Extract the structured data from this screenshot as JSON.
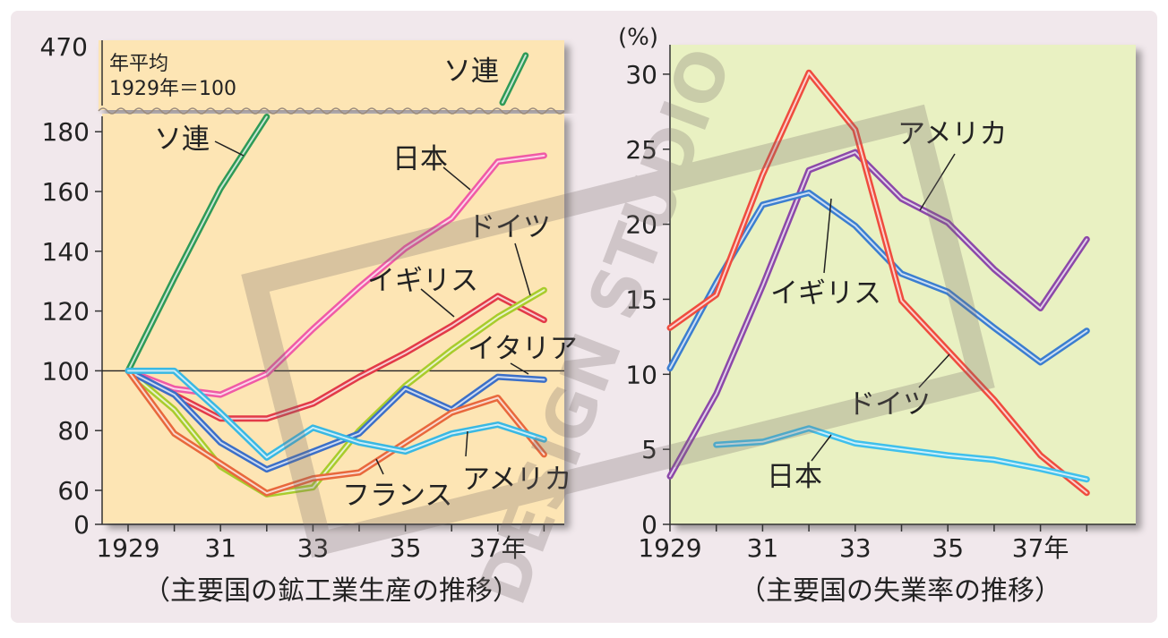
{
  "colors": {
    "frame_bg": "#f1e8ec",
    "left_plot_bg": "#fde5b4",
    "right_plot_bg": "#e9f1c2",
    "watermark": "#7a6f6c",
    "ussr": "#2e9a57",
    "japan_left": "#f05aa6",
    "uk_left": "#e23a48",
    "germany_left": "#a8cc2c",
    "italy": "#3b6fc8",
    "france": "#e8683c",
    "usa_left": "#39b8e3",
    "us_right": "#8c48a9",
    "uk_right": "#3b7ed0",
    "germany_right": "#ef4c3e",
    "japan_right": "#3fc0ec"
  },
  "watermark_text": "DESIGN STUDIO",
  "chart_data": [
    {
      "type": "line",
      "id": "production",
      "title": "（主要国の鉱工業生産の推移）",
      "note_line1": "年平均",
      "note_line2": "1929年＝100",
      "xlabel": "",
      "ylabel": "",
      "x": [
        1929,
        1930,
        1931,
        1932,
        1933,
        1934,
        1935,
        1936,
        1937,
        1938
      ],
      "x_tick_values": [
        1929,
        1931,
        1933,
        1935,
        1937
      ],
      "x_tick_labels": [
        "1929",
        "31",
        "33",
        "35",
        "37年"
      ],
      "y_tick_values": [
        0,
        60,
        80,
        100,
        120,
        140,
        160,
        180
      ],
      "y_tick_labels": [
        "0",
        "60",
        "80",
        "100",
        "120",
        "140",
        "160",
        "180"
      ],
      "y_break_label": "470",
      "ylim": [
        0,
        190
      ],
      "baseline": 100,
      "series": [
        {
          "name": "ソ連",
          "label": "ソ連",
          "color_key": "ussr",
          "points": [
            [
              1929,
              100
            ],
            [
              1930,
              131
            ],
            [
              1931,
              161
            ],
            [
              1932,
              185
            ]
          ]
        },
        {
          "name": "ソ連 (470)",
          "label": "ソ連",
          "color_key": "ussr",
          "above_break": true,
          "points": [
            [
              1937.1,
              1
            ],
            [
              1937.6,
              17
            ]
          ]
        },
        {
          "name": "日本",
          "label": "日本",
          "color_key": "japan_left",
          "points": [
            [
              1929,
              100
            ],
            [
              1930,
              94
            ],
            [
              1931,
              92
            ],
            [
              1932,
              99
            ],
            [
              1933,
              114
            ],
            [
              1934,
              128
            ],
            [
              1935,
              141
            ],
            [
              1936,
              151
            ],
            [
              1937,
              170
            ],
            [
              1938,
              172
            ]
          ]
        },
        {
          "name": "イギリス",
          "label": "イギリス",
          "color_key": "uk_left",
          "points": [
            [
              1929,
              100
            ],
            [
              1930,
              92
            ],
            [
              1931,
              84
            ],
            [
              1932,
              84
            ],
            [
              1933,
              89
            ],
            [
              1934,
              98
            ],
            [
              1935,
              106
            ],
            [
              1936,
              115
            ],
            [
              1937,
              125
            ],
            [
              1938,
              117
            ]
          ]
        },
        {
          "name": "ドイツ",
          "label": "ドイツ",
          "color_key": "germany_left",
          "points": [
            [
              1929,
              100
            ],
            [
              1930,
              87
            ],
            [
              1931,
              68
            ],
            [
              1932,
              53
            ],
            [
              1933,
              61
            ],
            [
              1934,
              80
            ],
            [
              1935,
              95
            ],
            [
              1936,
              107
            ],
            [
              1937,
              118
            ],
            [
              1938,
              127
            ]
          ]
        },
        {
          "name": "イタリア",
          "label": "イタリア",
          "color_key": "italy",
          "points": [
            [
              1929,
              100
            ],
            [
              1930,
              92
            ],
            [
              1931,
              76
            ],
            [
              1932,
              67
            ],
            [
              1933,
              73
            ],
            [
              1934,
              79
            ],
            [
              1935,
              94
            ],
            [
              1936,
              87
            ],
            [
              1937,
              98
            ],
            [
              1938,
              97
            ]
          ]
        },
        {
          "name": "フランス",
          "label": "フランス",
          "color_key": "france",
          "points": [
            [
              1929,
              100
            ],
            [
              1930,
              79
            ],
            [
              1931,
              69
            ],
            [
              1932,
              55
            ],
            [
              1933,
              64
            ],
            [
              1934,
              66
            ],
            [
              1935,
              76
            ],
            [
              1936,
              86
            ],
            [
              1937,
              91
            ],
            [
              1938,
              72
            ]
          ]
        },
        {
          "name": "アメリカ",
          "label": "アメリカ",
          "color_key": "usa_left",
          "points": [
            [
              1929,
              100
            ],
            [
              1930,
              100
            ],
            [
              1931,
              86
            ],
            [
              1932,
              71
            ],
            [
              1933,
              81
            ],
            [
              1934,
              76
            ],
            [
              1935,
              73
            ],
            [
              1936,
              79
            ],
            [
              1937,
              82
            ],
            [
              1938,
              77
            ]
          ]
        }
      ]
    },
    {
      "type": "line",
      "id": "unemployment",
      "title": "（主要国の失業率の推移）",
      "xlabel": "",
      "ylabel": "(%)",
      "x": [
        1929,
        1930,
        1931,
        1932,
        1933,
        1934,
        1935,
        1936,
        1937,
        1938
      ],
      "x_tick_values": [
        1929,
        1931,
        1933,
        1935,
        1937
      ],
      "x_tick_labels": [
        "1929",
        "31",
        "33",
        "35",
        "37年"
      ],
      "y_tick_values": [
        0,
        5,
        10,
        15,
        20,
        25,
        30
      ],
      "y_tick_labels": [
        "0",
        "5",
        "10",
        "15",
        "20",
        "25",
        "30"
      ],
      "ylim": [
        0,
        32
      ],
      "series": [
        {
          "name": "アメリカ",
          "label": "アメリカ",
          "color_key": "us_right",
          "points": [
            [
              1929,
              3.2
            ],
            [
              1930,
              8.7
            ],
            [
              1931,
              15.9
            ],
            [
              1932,
              23.6
            ],
            [
              1933,
              24.8
            ],
            [
              1934,
              21.7
            ],
            [
              1935,
              20.1
            ],
            [
              1936,
              17.0
            ],
            [
              1937,
              14.4
            ],
            [
              1938,
              19.0
            ]
          ]
        },
        {
          "name": "イギリス",
          "label": "イギリス",
          "color_key": "uk_right",
          "points": [
            [
              1929,
              10.4
            ],
            [
              1930,
              16.1
            ],
            [
              1931,
              21.3
            ],
            [
              1932,
              22.1
            ],
            [
              1933,
              19.9
            ],
            [
              1934,
              16.7
            ],
            [
              1935,
              15.5
            ],
            [
              1936,
              13.1
            ],
            [
              1937,
              10.8
            ],
            [
              1938,
              12.9
            ]
          ]
        },
        {
          "name": "ドイツ",
          "label": "ドイツ",
          "color_key": "germany_right",
          "points": [
            [
              1929,
              13.1
            ],
            [
              1930,
              15.3
            ],
            [
              1931,
              23.3
            ],
            [
              1932,
              30.1
            ],
            [
              1933,
              26.3
            ],
            [
              1934,
              14.9
            ],
            [
              1935,
              11.6
            ],
            [
              1936,
              8.3
            ],
            [
              1937,
              4.6
            ],
            [
              1938,
              2.1
            ]
          ]
        },
        {
          "name": "日本",
          "label": "日本",
          "color_key": "japan_right",
          "points": [
            [
              1930,
              5.3
            ],
            [
              1931,
              5.5
            ],
            [
              1932,
              6.4
            ],
            [
              1933,
              5.4
            ],
            [
              1934,
              5.0
            ],
            [
              1935,
              4.6
            ],
            [
              1936,
              4.3
            ],
            [
              1937,
              3.7
            ],
            [
              1938,
              3.0
            ]
          ]
        }
      ]
    }
  ]
}
